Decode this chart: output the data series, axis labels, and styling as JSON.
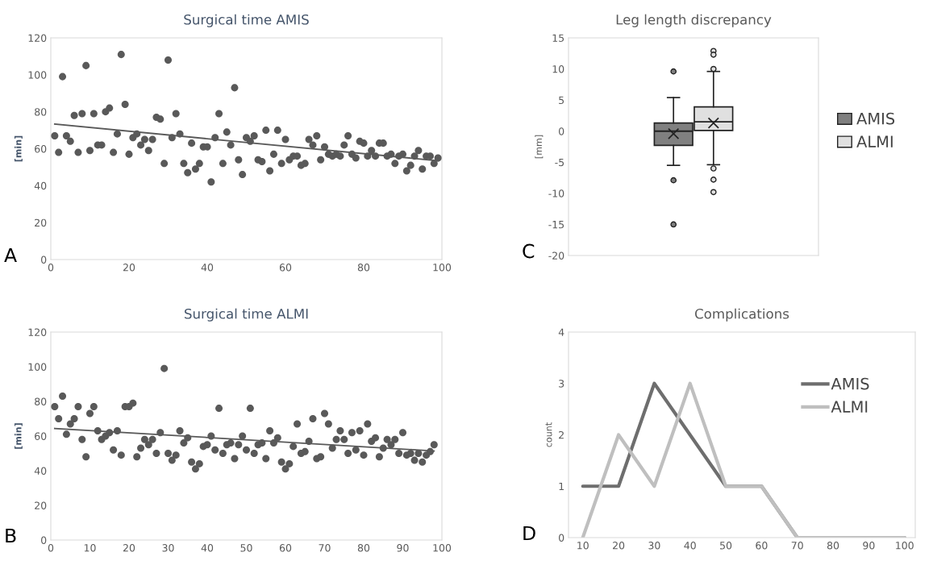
{
  "chart_data": [
    {
      "type": "scatter",
      "title": "Surgical time AMIS",
      "ylabel": "[min]",
      "annotations": [
        "A"
      ],
      "marker": "circle",
      "grid": false,
      "xlim": [
        0,
        100
      ],
      "xticks": [
        0,
        20,
        40,
        60,
        80,
        100
      ],
      "ylim": [
        0,
        120
      ],
      "yticks": [
        0,
        20,
        40,
        60,
        80,
        100,
        120
      ],
      "series": [
        {
          "color": "#595959",
          "x": [
            1,
            2,
            3,
            4,
            5,
            6,
            7,
            8,
            9,
            10,
            11,
            12,
            13,
            14,
            15,
            16,
            17,
            18,
            19,
            20,
            21,
            22,
            23,
            24,
            25,
            26,
            27,
            28,
            29,
            30,
            31,
            32,
            33,
            34,
            35,
            36,
            37,
            38,
            39,
            40,
            41,
            42,
            43,
            44,
            45,
            46,
            47,
            48,
            49,
            50,
            51,
            52,
            53,
            54,
            55,
            56,
            57,
            58,
            59,
            60,
            61,
            62,
            63,
            64,
            65,
            66,
            67,
            68,
            69,
            70,
            71,
            72,
            73,
            74,
            75,
            76,
            77,
            78,
            79,
            80,
            81,
            82,
            83,
            84,
            85,
            86,
            87,
            88,
            89,
            90,
            91,
            92,
            93,
            94,
            95,
            96,
            97,
            98,
            99
          ],
          "values": [
            67,
            58,
            99,
            67,
            64,
            78,
            58,
            79,
            105,
            59,
            79,
            62,
            62,
            80,
            82,
            58,
            68,
            111,
            84,
            57,
            66,
            68,
            62,
            65,
            59,
            65,
            77,
            76,
            52,
            108,
            66,
            79,
            68,
            52,
            47,
            63,
            49,
            52,
            61,
            61,
            42,
            66,
            79,
            52,
            69,
            62,
            93,
            54,
            46,
            66,
            64,
            67,
            54,
            53,
            70,
            48,
            57,
            70,
            52,
            65,
            54,
            56,
            56,
            51,
            52,
            65,
            62,
            67,
            54,
            61,
            57,
            56,
            57,
            56,
            62,
            67,
            57,
            55,
            64,
            63,
            56,
            59,
            56,
            63,
            63,
            56,
            57,
            52,
            56,
            57,
            48,
            51,
            56,
            59,
            49,
            56,
            56,
            52,
            55
          ]
        },
        {
          "type": "line",
          "marker": "none",
          "color": "#595959",
          "x": [
            1,
            99
          ],
          "values": [
            73.3,
            53.5
          ]
        }
      ]
    },
    {
      "type": "scatter",
      "title": "Surgical time ALMI",
      "ylabel": "[min]",
      "annotations": [
        "B"
      ],
      "marker": "circle",
      "grid": false,
      "xlim": [
        0,
        100
      ],
      "xticks": [
        0,
        10,
        20,
        30,
        40,
        50,
        60,
        70,
        80,
        90,
        100
      ],
      "ylim": [
        0,
        120
      ],
      "yticks": [
        0,
        20,
        40,
        60,
        80,
        100,
        120
      ],
      "series": [
        {
          "color": "#595959",
          "x": [
            1,
            2,
            3,
            4,
            5,
            6,
            7,
            8,
            9,
            10,
            11,
            12,
            13,
            14,
            15,
            16,
            17,
            18,
            19,
            20,
            21,
            22,
            23,
            24,
            25,
            26,
            27,
            28,
            29,
            30,
            31,
            32,
            33,
            34,
            35,
            36,
            37,
            38,
            39,
            40,
            41,
            42,
            43,
            44,
            45,
            46,
            47,
            48,
            49,
            50,
            51,
            52,
            53,
            54,
            55,
            56,
            57,
            58,
            59,
            60,
            61,
            62,
            63,
            64,
            65,
            66,
            67,
            68,
            69,
            70,
            71,
            72,
            73,
            74,
            75,
            76,
            77,
            78,
            79,
            80,
            81,
            82,
            83,
            84,
            85,
            86,
            87,
            88,
            89,
            90,
            91,
            92,
            93,
            94,
            95,
            96,
            97,
            98
          ],
          "values": [
            77,
            70,
            83,
            61,
            67,
            70,
            77,
            58,
            48,
            73,
            77,
            63,
            58,
            60,
            62,
            52,
            63,
            49,
            77,
            77,
            79,
            48,
            53,
            58,
            55,
            58,
            50,
            62,
            99,
            50,
            46,
            49,
            63,
            56,
            59,
            45,
            41,
            44,
            54,
            55,
            60,
            52,
            76,
            50,
            55,
            56,
            47,
            55,
            60,
            52,
            76,
            50,
            55,
            56,
            47,
            63,
            56,
            59,
            45,
            41,
            44,
            54,
            67,
            50,
            51,
            57,
            70,
            47,
            48,
            73,
            67,
            53,
            58,
            63,
            58,
            50,
            62,
            52,
            63,
            49,
            67,
            57,
            59,
            48,
            53,
            58,
            55,
            58,
            50,
            62,
            49,
            50,
            46,
            50,
            45,
            49,
            51,
            55
          ]
        },
        {
          "type": "line",
          "marker": "none",
          "color": "#595959",
          "x": [
            1,
            98
          ],
          "values": [
            64.4,
            51.4
          ]
        }
      ]
    },
    {
      "type": "box",
      "title": "Leg length discrepancy",
      "ylabel": "[mm]",
      "annotations": [
        "C"
      ],
      "categories": [
        null
      ],
      "legend": "right",
      "grid": false,
      "ylim": [
        -20,
        15
      ],
      "yticks": [
        -20,
        -15,
        -10,
        -5,
        0,
        5,
        10,
        15
      ],
      "series": [
        {
          "name": "AMIS",
          "color": "#808080",
          "boxes": [
            {
              "low": -5.5,
              "q1": -2.3,
              "median": 0,
              "q3": 1.3,
              "high": 5.4,
              "mean": -0.4,
              "outliers": [
                9.6,
                -7.9,
                -15
              ]
            }
          ]
        },
        {
          "name": "ALMI",
          "color": "#e0e0e0",
          "boxes": [
            {
              "low": -5.4,
              "q1": 0.1,
              "median": 1.5,
              "q3": 3.9,
              "high": 9.6,
              "mean": 1.3,
              "outliers": [
                12.9,
                12.3,
                10,
                -6,
                -7.8,
                -9.8
              ]
            }
          ]
        }
      ]
    },
    {
      "type": "line",
      "title": "Complications",
      "ylabel": "count",
      "annotations": [
        "D"
      ],
      "legend": "top right",
      "grid": false,
      "marker": "none",
      "line_style": "solid",
      "categories": [
        "10",
        "20",
        "30",
        "40",
        "50",
        "60",
        "70",
        "80",
        "90",
        "100"
      ],
      "ylim": [
        0,
        4
      ],
      "yticks": [
        0,
        1,
        2,
        3,
        4
      ],
      "series": [
        {
          "name": "AMIS",
          "color": "#6e6e6e",
          "values": [
            1,
            1,
            3,
            2,
            1,
            1,
            0,
            0,
            0,
            0
          ]
        },
        {
          "name": "ALMI",
          "color": "#bfbfbf",
          "values": [
            0,
            2,
            1,
            3,
            1,
            1,
            0,
            0,
            0,
            0
          ]
        }
      ]
    }
  ]
}
